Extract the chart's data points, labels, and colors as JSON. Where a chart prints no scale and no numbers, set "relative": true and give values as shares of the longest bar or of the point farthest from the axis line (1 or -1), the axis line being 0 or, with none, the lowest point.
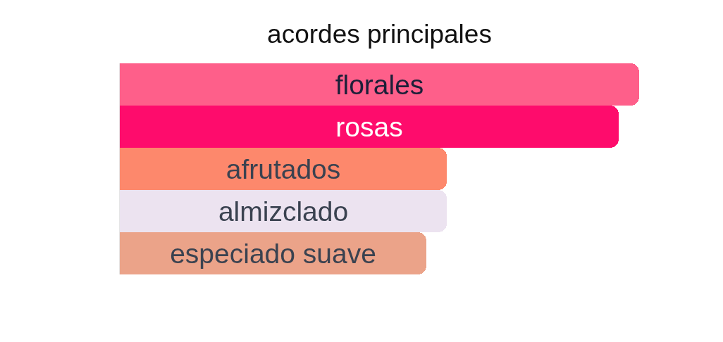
{
  "chart_data": {
    "type": "bar",
    "title": "acordes principales",
    "orientation": "horizontal",
    "relative": true,
    "categories": [
      "florales",
      "rosas",
      "afrutados",
      "almizclado",
      "especiado suave"
    ],
    "values": [
      1,
      0.96,
      0.63,
      0.63,
      0.59
    ],
    "colors": [
      "#fe5f8a",
      "#fe0c6c",
      "#fd886c",
      "#ece3f0",
      "#eba389"
    ]
  }
}
